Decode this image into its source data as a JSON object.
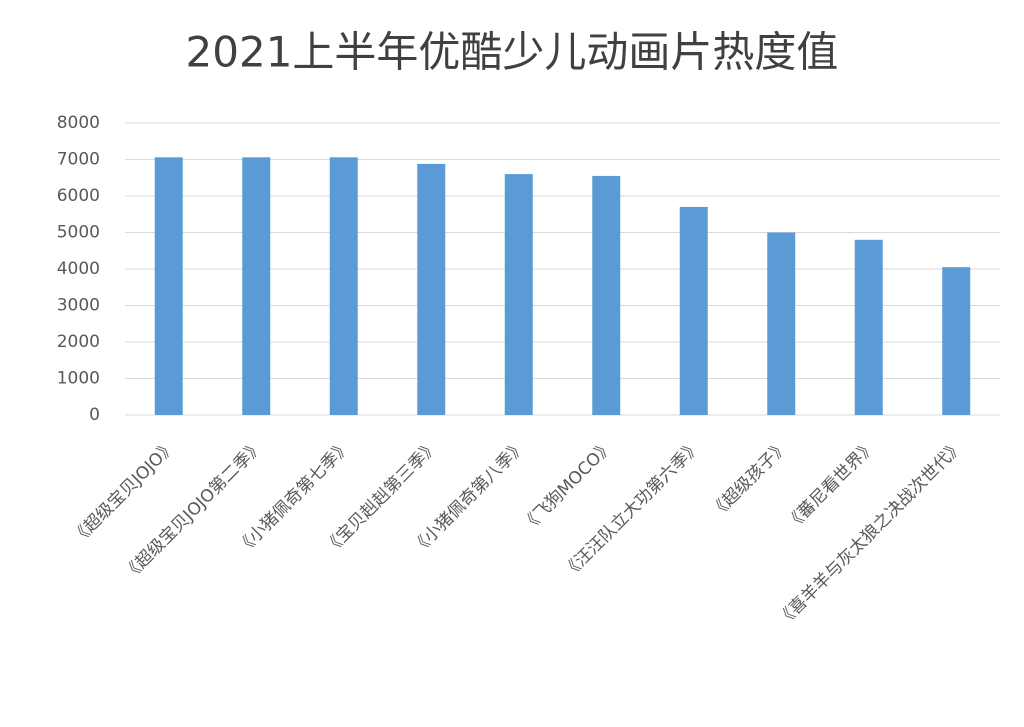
{
  "chart_data": {
    "type": "bar",
    "title": "2021上半年优酷少儿动画片热度值",
    "categories": [
      "《超级宝贝JOJO》",
      "《超级宝贝JOJO第二季》",
      "《小猪佩奇第七季》",
      "《宝贝赳赳第三季》",
      "《小猪佩奇第八季》",
      "《飞狗MOCO》",
      "《汪汪队立大功第六季》",
      "《超级孩子》",
      "《蕃尼看世界》",
      "《喜羊羊与灰太狼之决战次世代》"
    ],
    "values": [
      7060,
      7060,
      7060,
      6880,
      6600,
      6550,
      5700,
      5000,
      4800,
      4050
    ],
    "color": "#5b9bd5",
    "ylim": [
      0,
      8000
    ],
    "yticks": [
      0,
      1000,
      2000,
      3000,
      4000,
      5000,
      6000,
      7000,
      8000
    ],
    "grid": true
  }
}
